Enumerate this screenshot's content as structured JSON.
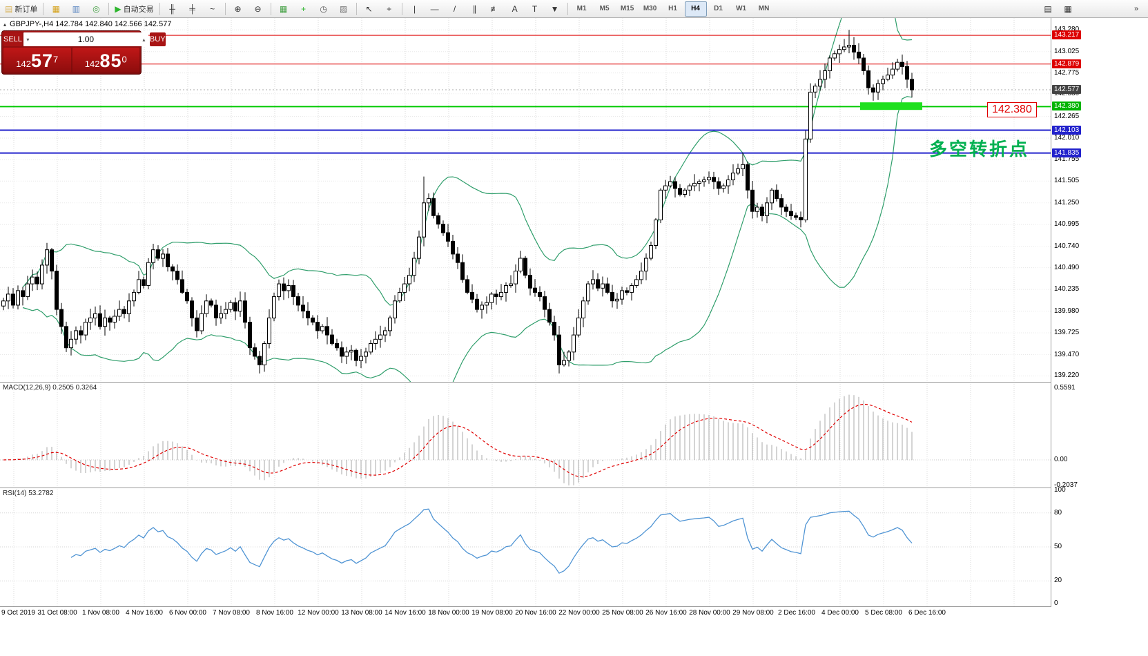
{
  "colors": {
    "up": "#ffffff",
    "down": "#000000",
    "outline": "#000000",
    "bollinger": "#2f9e6b",
    "macd_hist": "#b6b6b6",
    "macd_signal": "#e00000",
    "rsi": "#4f94d4",
    "grid": "#dcdcdc",
    "zone": "#1fe01f",
    "current_line": "#aaaaaa"
  },
  "toolbar": {
    "groups": [
      {
        "items": [
          {
            "id": "new-order-button",
            "label": "新订单",
            "glyph": "▤",
            "glyph_color": "#d8b25a"
          }
        ]
      },
      {
        "items": [
          {
            "id": "market-watch-icon",
            "glyph": "▦",
            "glyph_color": "#d4a017"
          },
          {
            "id": "data-window-icon",
            "glyph": "▥",
            "glyph_color": "#5b86c0"
          },
          {
            "id": "navigator-icon",
            "glyph": "◎",
            "glyph_color": "#3f9e3f"
          }
        ]
      },
      {
        "items": [
          {
            "id": "autotrading-button",
            "label": "自动交易",
            "glyph": "▶",
            "glyph_color": "#2db52d"
          }
        ]
      },
      {
        "items": [
          {
            "id": "bar-chart-icon",
            "glyph": "╫"
          },
          {
            "id": "candlestick-chart-icon",
            "glyph": "╪"
          },
          {
            "id": "line-chart-icon",
            "glyph": "~"
          }
        ]
      },
      {
        "items": [
          {
            "id": "zoom-in-icon",
            "glyph": "⊕"
          },
          {
            "id": "zoom-out-icon",
            "glyph": "⊖"
          }
        ]
      },
      {
        "items": [
          {
            "id": "tile-windows-icon",
            "glyph": "▦",
            "glyph_color": "#3f9e3f"
          },
          {
            "id": "indicators-icon",
            "glyph": "+",
            "glyph_color": "#2db52d"
          },
          {
            "id": "period-icon",
            "glyph": "◷",
            "glyph_color": "#555555"
          },
          {
            "id": "templates-icon",
            "glyph": "▨",
            "glyph_color": "#777777"
          }
        ]
      },
      {
        "items": [
          {
            "id": "cursor-icon",
            "glyph": "↖"
          },
          {
            "id": "crosshair-icon",
            "glyph": "+"
          }
        ]
      },
      {
        "items": [
          {
            "id": "vertical-line-icon",
            "glyph": "|"
          },
          {
            "id": "horizontal-line-icon",
            "glyph": "—"
          },
          {
            "id": "trendline-icon",
            "glyph": "/"
          },
          {
            "id": "channel-icon",
            "glyph": "∥"
          },
          {
            "id": "fibonacci-icon",
            "glyph": "≢"
          },
          {
            "id": "text-icon",
            "glyph": "A"
          },
          {
            "id": "label-icon",
            "glyph": "T"
          },
          {
            "id": "arrows-icon",
            "glyph": "▼"
          }
        ]
      }
    ],
    "timeframes": {
      "items": [
        "M1",
        "M5",
        "M15",
        "M30",
        "H1",
        "H4",
        "D1",
        "W1",
        "MN"
      ],
      "active": "H4"
    },
    "right_icons": [
      {
        "id": "new-chart-window-icon",
        "glyph": "▤"
      },
      {
        "id": "window-layout-icon",
        "glyph": "▦"
      }
    ],
    "overflow": {
      "id": "toolbar-overflow-icon",
      "glyph": "»"
    }
  },
  "symbol_header": {
    "collapse_icon": "▴",
    "text": "GBPJPY-,H4 142.784 142.840 142.566 142.577"
  },
  "trade_panel": {
    "sell_label": "SELL",
    "buy_label": "BUY",
    "volume": "1.00",
    "sell_price": {
      "prefix": "142",
      "big": "57",
      "sup": "7"
    },
    "buy_price": {
      "prefix": "142",
      "big": "85",
      "sup": "0"
    }
  },
  "annotations": {
    "turning_point": "多空转折点",
    "price_tag": "142.380"
  },
  "price_scale": {
    "gridline_labels": [
      "143.280",
      "143.025",
      "142.775",
      "142.530",
      "142.265",
      "142.010",
      "141.755",
      "141.505",
      "141.250",
      "140.995",
      "140.740",
      "140.490",
      "140.235",
      "139.980",
      "139.725",
      "139.470",
      "139.220"
    ],
    "boxed": [
      {
        "value": "143.217",
        "price": 143.217,
        "bg": "#dd0000"
      },
      {
        "value": "142.879",
        "price": 142.879,
        "bg": "#dd0000"
      },
      {
        "value": "142.577",
        "price": 142.577,
        "bg": "#444444"
      },
      {
        "value": "142.380",
        "price": 142.38,
        "bg": "#00b400"
      },
      {
        "value": "142.103",
        "price": 142.103,
        "bg": "#2222cc"
      },
      {
        "value": "141.835",
        "price": 141.835,
        "bg": "#2222cc"
      }
    ]
  },
  "macd": {
    "label": "MACD(12,26,9) 0.2505 0.3264",
    "scale": [
      "0.5591",
      "0.00",
      "-0.2037"
    ]
  },
  "rsi": {
    "label": "RSI(14) 53.2782",
    "scale": [
      "100",
      "80",
      "50",
      "20",
      "0"
    ]
  },
  "chart_data": {
    "type": "candlestick",
    "symbol": "GBPJPY-",
    "timeframe": "H4",
    "ohlc_display": {
      "open": 142.784,
      "high": 142.84,
      "low": 142.566,
      "close": 142.577
    },
    "ylim": [
      139.15,
      143.42
    ],
    "closes": [
      140.1,
      140.18,
      140.05,
      140.22,
      140.15,
      140.3,
      140.38,
      140.3,
      140.52,
      140.7,
      140.45,
      140.0,
      139.8,
      139.55,
      139.65,
      139.75,
      139.7,
      139.85,
      139.9,
      139.95,
      139.8,
      139.9,
      139.85,
      139.92,
      140.0,
      139.95,
      140.1,
      140.2,
      140.35,
      140.28,
      140.55,
      140.7,
      140.6,
      140.65,
      140.5,
      140.45,
      140.35,
      140.2,
      140.1,
      139.9,
      139.75,
      139.95,
      140.1,
      140.05,
      139.9,
      139.95,
      140.0,
      140.08,
      139.98,
      140.1,
      139.85,
      139.55,
      139.45,
      139.35,
      139.6,
      139.9,
      140.15,
      140.3,
      140.22,
      140.28,
      140.15,
      140.05,
      139.98,
      139.9,
      139.85,
      139.75,
      139.8,
      139.7,
      139.6,
      139.55,
      139.45,
      139.5,
      139.52,
      139.4,
      139.45,
      139.5,
      139.6,
      139.65,
      139.7,
      139.75,
      139.9,
      140.1,
      140.2,
      140.3,
      140.4,
      140.6,
      140.85,
      141.25,
      141.3,
      141.1,
      141.0,
      140.9,
      140.8,
      140.65,
      140.55,
      140.35,
      140.2,
      140.12,
      140.0,
      140.05,
      140.08,
      140.18,
      140.15,
      140.2,
      140.28,
      140.3,
      140.45,
      140.6,
      140.4,
      140.25,
      140.2,
      140.15,
      140.0,
      139.85,
      139.7,
      139.35,
      139.4,
      139.5,
      139.7,
      139.9,
      140.1,
      140.3,
      140.35,
      140.25,
      140.3,
      140.2,
      140.1,
      140.12,
      140.22,
      140.2,
      140.28,
      140.35,
      140.45,
      140.6,
      140.75,
      141.05,
      141.4,
      141.45,
      141.5,
      141.42,
      141.35,
      141.4,
      141.45,
      141.48,
      141.5,
      141.52,
      141.55,
      141.5,
      141.42,
      141.45,
      141.52,
      141.6,
      141.65,
      141.7,
      141.4,
      141.15,
      141.2,
      141.1,
      141.25,
      141.4,
      141.3,
      141.2,
      141.15,
      141.1,
      141.08,
      141.05,
      142.0,
      142.55,
      142.62,
      142.7,
      142.8,
      142.95,
      143.0,
      143.05,
      143.08,
      143.1,
      143.02,
      142.95,
      142.8,
      142.6,
      142.55,
      142.65,
      142.7,
      142.75,
      142.82,
      142.9,
      142.85,
      142.7,
      142.577
    ],
    "wick_overrides": {
      "9": {
        "h": 140.78
      },
      "53": {
        "l": 139.25
      },
      "87": {
        "h": 141.56
      },
      "115": {
        "l": 139.25
      },
      "153": {
        "h": 141.84
      },
      "166": {
        "l": 141.02
      },
      "175": {
        "h": 143.28
      }
    },
    "overlays": {
      "bollinger": {
        "period": 20,
        "deviation": 2
      }
    },
    "hlines": [
      {
        "price": 143.217,
        "color": "#dd0000",
        "width": 1
      },
      {
        "price": 142.879,
        "color": "#dd0000",
        "width": 1
      },
      {
        "price": 142.38,
        "color": "#00ca00",
        "width": 2
      },
      {
        "price": 142.103,
        "color": "#2222cc",
        "width": 2
      },
      {
        "price": 141.835,
        "color": "#2222cc",
        "width": 2
      }
    ],
    "current_price": 142.577,
    "highlight_zone": {
      "x": 1246,
      "width": 90,
      "price": 142.385,
      "height": 11
    },
    "indicators": [
      {
        "type": "macd",
        "fast": 12,
        "slow": 26,
        "signal": 9,
        "display_values": [
          0.2505,
          0.3264
        ],
        "scale": [
          -0.2037,
          0.5591
        ]
      },
      {
        "type": "rsi",
        "period": 14,
        "display_value": 53.2782,
        "scale": [
          0,
          100
        ],
        "levels": [
          80,
          50,
          20
        ]
      }
    ],
    "x_labels": [
      "9 Oct 2019",
      "31 Oct 08:00",
      "1 Nov 08:00",
      "4 Nov 16:00",
      "6 Nov 00:00",
      "7 Nov 08:00",
      "8 Nov 16:00",
      "12 Nov 00:00",
      "13 Nov 08:00",
      "14 Nov 16:00",
      "18 Nov 00:00",
      "19 Nov 08:00",
      "20 Nov 16:00",
      "22 Nov 00:00",
      "25 Nov 08:00",
      "26 Nov 16:00",
      "28 Nov 00:00",
      "29 Nov 08:00",
      "2 Dec 16:00",
      "4 Dec 00:00",
      "5 Dec 08:00",
      "6 Dec 16:00"
    ]
  }
}
